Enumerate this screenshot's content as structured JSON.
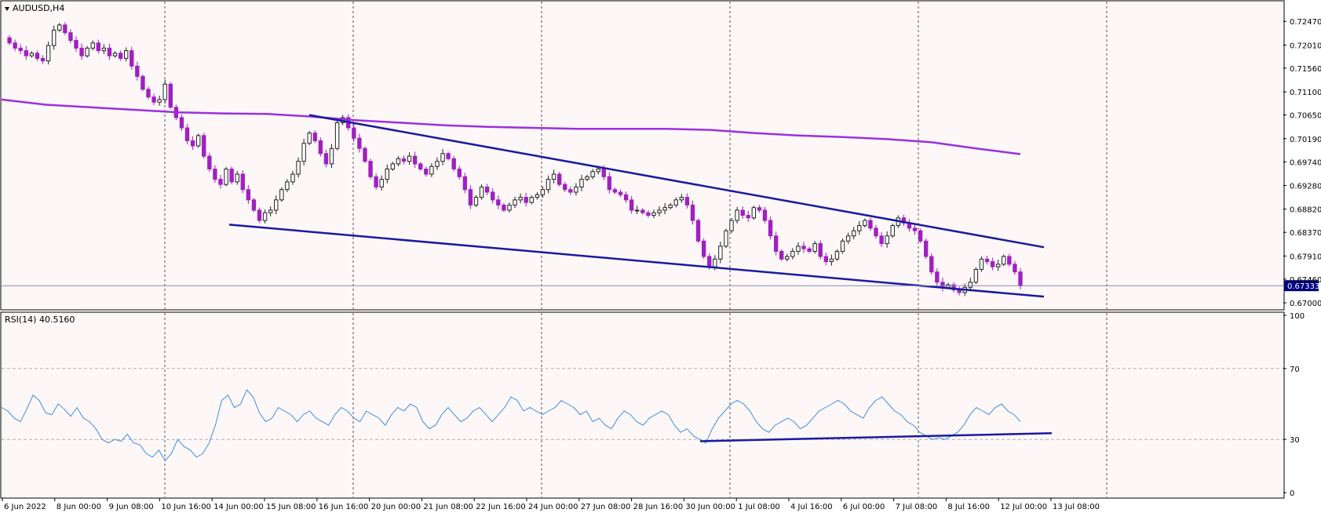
{
  "header": {
    "symbol_label": "AUDUSD,H4"
  },
  "indicator": {
    "label": "RSI(14) 40.5160"
  },
  "colors": {
    "background": "#fdf7f8",
    "bull_body": "#ffffff",
    "bull_outline": "#222222",
    "bear": "#a020c0",
    "ma_line": "#9b30e0",
    "trendline": "#1a1aa0",
    "rsi_line": "#3d8fe0",
    "grid": "#555555",
    "price_badge": "#000080"
  },
  "chart_data": [
    {
      "type": "candlestick",
      "title": "AUDUSD,H4",
      "y_ticks": [
        "0.72470",
        "0.72010",
        "0.71560",
        "0.71100",
        "0.70650",
        "0.70190",
        "0.69740",
        "0.69280",
        "0.68820",
        "0.68370",
        "0.67910",
        "0.67460",
        "0.67000"
      ],
      "ylim": [
        0.6697,
        0.7258
      ],
      "current_price": "0.67333",
      "x_ticks": [
        "6 Jun 2022",
        "8 Jun 00:00",
        "9 Jun 08:00",
        "10 Jun 16:00",
        "14 Jun 00:00",
        "15 Jun 08:00",
        "16 Jun 16:00",
        "20 Jun 00:00",
        "21 Jun 08:00",
        "22 Jun 16:00",
        "24 Jun 00:00",
        "27 Jun 08:00",
        "28 Jun 16:00",
        "30 Jun 00:00",
        "1 Jul 08:00",
        "4 Jul 16:00",
        "6 Jul 00:00",
        "7 Jul 08:00",
        "8 Jul 16:00",
        "12 Jul 00:00",
        "13 Jul 08:00"
      ],
      "close_path": [
        0.7215,
        0.7205,
        0.7195,
        0.719,
        0.718,
        0.7185,
        0.7175,
        0.717,
        0.72,
        0.723,
        0.724,
        0.7225,
        0.721,
        0.7195,
        0.718,
        0.7195,
        0.7205,
        0.719,
        0.7195,
        0.718,
        0.7185,
        0.7175,
        0.719,
        0.716,
        0.714,
        0.7115,
        0.71,
        0.709,
        0.7095,
        0.7125,
        0.708,
        0.706,
        0.704,
        0.7015,
        0.7005,
        0.7025,
        0.6985,
        0.696,
        0.694,
        0.693,
        0.696,
        0.6935,
        0.695,
        0.692,
        0.69,
        0.688,
        0.686,
        0.6875,
        0.688,
        0.69,
        0.692,
        0.6935,
        0.695,
        0.6975,
        0.701,
        0.703,
        0.7015,
        0.699,
        0.697,
        0.7,
        0.705,
        0.706,
        0.704,
        0.702,
        0.7,
        0.6975,
        0.6945,
        0.6925,
        0.694,
        0.696,
        0.697,
        0.698,
        0.6975,
        0.6985,
        0.697,
        0.696,
        0.695,
        0.6965,
        0.6975,
        0.699,
        0.698,
        0.696,
        0.6945,
        0.692,
        0.689,
        0.6905,
        0.6925,
        0.6915,
        0.69,
        0.689,
        0.688,
        0.689,
        0.69,
        0.6905,
        0.6895,
        0.6905,
        0.691,
        0.692,
        0.694,
        0.695,
        0.693,
        0.692,
        0.6915,
        0.6925,
        0.694,
        0.6945,
        0.6955,
        0.696,
        0.6945,
        0.692,
        0.6915,
        0.691,
        0.69,
        0.688,
        0.688,
        0.6875,
        0.687,
        0.6875,
        0.688,
        0.6885,
        0.689,
        0.69,
        0.6905,
        0.689,
        0.686,
        0.682,
        0.679,
        0.677,
        0.6785,
        0.681,
        0.684,
        0.686,
        0.688,
        0.687,
        0.6865,
        0.6885,
        0.688,
        0.686,
        0.683,
        0.68,
        0.6785,
        0.679,
        0.68,
        0.681,
        0.6805,
        0.68,
        0.6815,
        0.679,
        0.678,
        0.6785,
        0.68,
        0.682,
        0.683,
        0.684,
        0.685,
        0.686,
        0.6845,
        0.683,
        0.6815,
        0.683,
        0.685,
        0.6865,
        0.6855,
        0.6845,
        0.684,
        0.682,
        0.679,
        0.676,
        0.674,
        0.673,
        0.6735,
        0.6725,
        0.672,
        0.673,
        0.674,
        0.6765,
        0.6785,
        0.678,
        0.677,
        0.6775,
        0.679,
        0.6775,
        0.676,
        0.6733
      ],
      "ma_path": [
        0.7095,
        0.7085,
        0.708,
        0.7075,
        0.707,
        0.7068,
        0.7067,
        0.7062,
        0.7055,
        0.705,
        0.7045,
        0.7042,
        0.704,
        0.7038,
        0.7038,
        0.7038,
        0.7036,
        0.703,
        0.7025,
        0.7022,
        0.7018,
        0.7012,
        0.7,
        0.6989
      ],
      "trendlines": [
        {
          "from": [
            0.0592,
            0.7065
          ],
          "to": [
            0.1945,
            0.6808
          ]
        },
        {
          "from": [
            0.0436,
            0.6852
          ],
          "to": [
            0.1945,
            0.6712
          ]
        }
      ]
    },
    {
      "type": "line",
      "title": "RSI(14) 40.5160",
      "y_ticks": [
        "100",
        "70",
        "30",
        "0"
      ],
      "ylim": [
        0,
        100
      ],
      "levels": [
        70,
        30
      ],
      "series": [
        {
          "values": [
            48,
            46,
            42,
            40,
            47,
            55,
            52,
            45,
            44,
            50,
            47,
            43,
            48,
            42,
            40,
            36,
            30,
            28,
            30,
            29,
            33,
            28,
            27,
            22,
            20,
            24,
            18,
            22,
            30,
            26,
            24,
            20,
            22,
            28,
            38,
            52,
            55,
            48,
            50,
            58,
            54,
            45,
            40,
            42,
            48,
            46,
            44,
            40,
            44,
            46,
            42,
            40,
            38,
            44,
            48,
            46,
            42,
            40,
            46,
            44,
            42,
            38,
            44,
            48,
            46,
            50,
            48,
            40,
            36,
            38,
            44,
            48,
            44,
            40,
            42,
            46,
            48,
            44,
            40,
            44,
            48,
            54,
            52,
            46,
            48,
            46,
            44,
            46,
            48,
            52,
            50,
            48,
            44,
            46,
            40,
            42,
            38,
            36,
            42,
            46,
            44,
            40,
            38,
            42,
            44,
            46,
            44,
            38,
            34,
            36,
            32,
            30,
            28,
            36,
            42,
            46,
            50,
            52,
            50,
            46,
            40,
            36,
            34,
            38,
            40,
            42,
            40,
            36,
            38,
            42,
            46,
            48,
            50,
            52,
            50,
            46,
            44,
            42,
            48,
            52,
            54,
            50,
            46,
            44,
            40,
            38,
            34,
            32,
            30,
            31,
            30,
            32,
            34,
            38,
            44,
            48,
            46,
            44,
            48,
            50,
            46,
            44,
            40
          ]
        }
      ],
      "trendline": {
        "from": [
          0.835,
          29
        ],
        "to": [
          1.24,
          33.5
        ]
      }
    }
  ]
}
